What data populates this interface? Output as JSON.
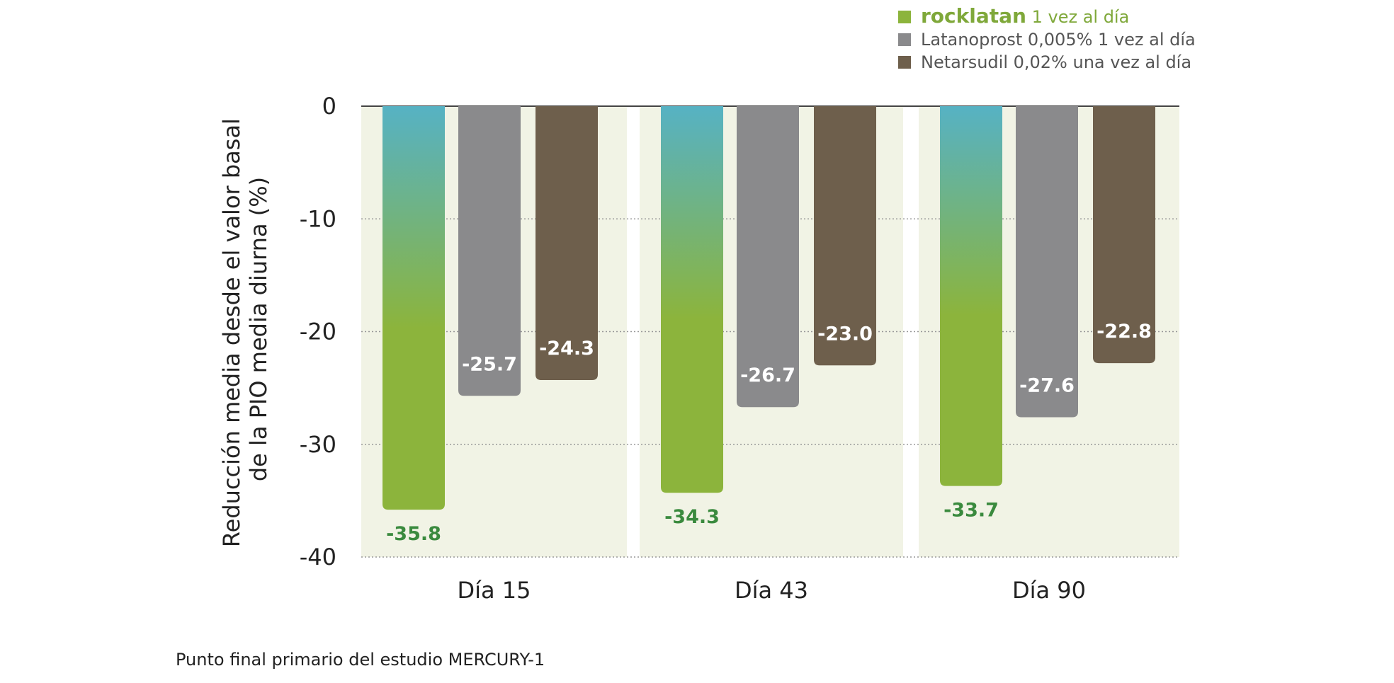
{
  "chart_data": {
    "type": "bar",
    "ylabel": [
      "Reducción media desde el valor basal",
      "de la PIO media diurna (%)"
    ],
    "ylim": [
      -40,
      0
    ],
    "yticks": [
      0,
      -10,
      -20,
      -30,
      -40
    ],
    "grid": true,
    "legend_position": "top-right",
    "categories": [
      "Día 15",
      "Día 43",
      "Día 90"
    ],
    "series": [
      {
        "name_brand": "rocklatan",
        "name_suffix": "1 vez al día",
        "color": "#8cb43c",
        "color_top": "#56b2c4",
        "label_color": "#3a8a3e",
        "values": [
          -35.8,
          -34.3,
          -33.7
        ],
        "labels": [
          "-35.8",
          "-34.3",
          "-33.7"
        ]
      },
      {
        "name": "Latanoprost 0,005% 1 vez al día",
        "color": "#8a8a8c",
        "label_color": "#ffffff",
        "values": [
          -25.7,
          -26.7,
          -27.6
        ],
        "labels": [
          "-25.7",
          "-26.7",
          "-27.6"
        ]
      },
      {
        "name": "Netarsudil 0,02% una vez al día",
        "color": "#6e5f4c",
        "label_color": "#ffffff",
        "values": [
          -24.3,
          -23.0,
          -22.8
        ],
        "labels": [
          "-24.3",
          "-23.0",
          "-22.8"
        ]
      }
    ],
    "legend_colors": {
      "brand_text": "#7fa83a",
      "suffix_text": "#7fa83a",
      "other_text": "#555555"
    },
    "panel_background": "#f1f3e5"
  },
  "footnote": "Punto final primario del estudio MERCURY-1"
}
